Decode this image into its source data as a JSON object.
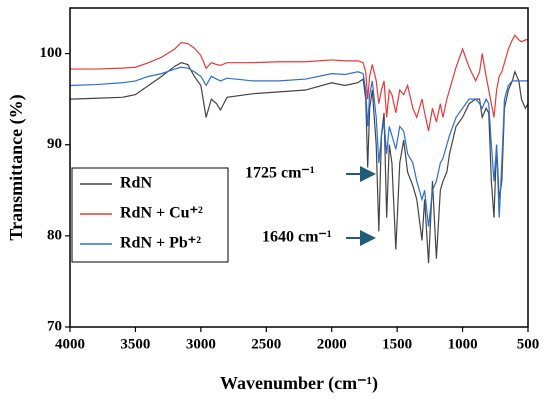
{
  "chart_data": {
    "type": "line",
    "xlabel": "Wavenumber (cm⁻¹)",
    "ylabel": "Transmittance (%)",
    "x": [
      4000,
      3800,
      3600,
      3500,
      3400,
      3300,
      3200,
      3150,
      3100,
      3050,
      3000,
      2960,
      2920,
      2880,
      2850,
      2800,
      2600,
      2400,
      2200,
      2000,
      1900,
      1800,
      1760,
      1740,
      1725,
      1710,
      1690,
      1660,
      1640,
      1620,
      1600,
      1580,
      1560,
      1540,
      1510,
      1480,
      1450,
      1420,
      1380,
      1350,
      1310,
      1290,
      1260,
      1230,
      1200,
      1170,
      1150,
      1120,
      1100,
      1050,
      1000,
      950,
      900,
      870,
      850,
      820,
      800,
      780,
      760,
      740,
      720,
      700,
      680,
      650,
      620,
      600,
      570,
      550,
      520,
      500
    ],
    "series": [
      {
        "name": "RdN",
        "color": "#444444",
        "values": [
          95,
          95.1,
          95.2,
          95.5,
          96.5,
          97.5,
          98.6,
          99,
          98.8,
          97.5,
          96.5,
          93,
          95,
          94.5,
          93.8,
          95.2,
          95.6,
          95.8,
          96,
          96.8,
          96.5,
          96.8,
          97.2,
          95,
          87.5,
          94,
          96,
          90,
          80.5,
          91,
          93.5,
          82,
          90,
          88,
          78.5,
          88,
          90.5,
          87,
          85.5,
          84,
          79.5,
          84,
          77,
          86,
          77.5,
          85,
          86,
          87,
          89,
          92,
          93,
          94.5,
          95,
          95,
          93,
          94,
          93.5,
          86,
          82,
          90,
          84,
          86,
          94,
          96,
          97,
          98,
          97,
          95,
          94,
          94.5
        ]
      },
      {
        "name": "RdN + Cu⁺²",
        "color": "#e8393a",
        "values": [
          98.3,
          98.3,
          98.4,
          98.5,
          99,
          99.6,
          100.5,
          101.2,
          101.1,
          100.6,
          99.8,
          98.4,
          99,
          98.8,
          98.7,
          99,
          99,
          99.1,
          99.1,
          99.3,
          99.2,
          99.2,
          99,
          98,
          95,
          97.5,
          98.8,
          97,
          94.5,
          96,
          97,
          93,
          96,
          95.5,
          93.5,
          96,
          95.5,
          96.5,
          94,
          93,
          95,
          93.5,
          91.5,
          94,
          92.5,
          94.5,
          93,
          95,
          96,
          98.5,
          100.5,
          98.5,
          97,
          98,
          100,
          97.5,
          96,
          94.5,
          93,
          96,
          97.5,
          98,
          99,
          100.5,
          101.5,
          102,
          101.5,
          101.3,
          101.5,
          101.5
        ]
      },
      {
        "name": "RdN + Pb⁺²",
        "color": "#2b6fd4",
        "values": [
          96.5,
          96.6,
          96.8,
          97,
          97.5,
          97.8,
          98.3,
          98.5,
          98.4,
          98,
          97.5,
          96.5,
          97.5,
          97.2,
          97,
          97.3,
          97,
          97,
          97.2,
          97.8,
          97.7,
          98,
          97.8,
          96,
          92,
          95.5,
          97,
          93,
          88,
          91,
          92.5,
          89,
          92,
          91,
          89.5,
          92,
          91.5,
          89,
          88,
          86,
          84,
          85,
          81,
          85,
          86,
          88,
          88.5,
          90,
          91,
          93,
          94,
          95,
          95,
          94.5,
          94,
          95,
          94.5,
          90,
          86,
          90,
          82,
          88,
          95,
          96.5,
          97,
          97,
          97,
          97,
          97,
          97
        ]
      }
    ],
    "xlim": [
      4000,
      500
    ],
    "xticks": [
      4000,
      3500,
      3000,
      2500,
      2000,
      1500,
      1000,
      500
    ],
    "ylim": [
      70,
      105
    ],
    "yticks": [
      70,
      80,
      90,
      100
    ],
    "annotations": [
      "1725 cm⁻¹",
      "1640 cm⁻¹"
    ]
  }
}
